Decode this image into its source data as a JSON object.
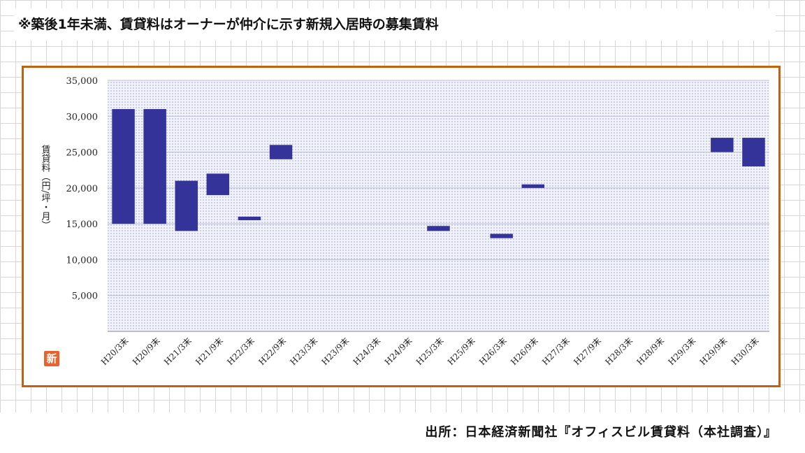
{
  "note": "※築後1年未満、賃貸料はオーナーが仲介に示す新規入居時の募集賃料",
  "source": "出所：日本経済新聞社『オフィスビル賃貸料（本社調査）』",
  "badge": "新",
  "colors": {
    "bar": "#333399",
    "frame": "#c0620f",
    "plot_dots": "#9aa3c8"
  },
  "chart_data": {
    "type": "bar",
    "subtype": "floating-range",
    "ylabel": "賃貸料（円/坪・月）",
    "ylim": [
      0,
      35000
    ],
    "yticks": [
      5000,
      10000,
      15000,
      20000,
      25000,
      30000,
      35000
    ],
    "ytick_labels": [
      "5,000",
      "10,000",
      "15,000",
      "20,000",
      "25,000",
      "30,000",
      "35,000"
    ],
    "categories": [
      "H20/3末",
      "H20/9末",
      "H21/3末",
      "H21/9末",
      "H22/3末",
      "H22/9末",
      "H23/3末",
      "H23/9末",
      "H24/3末",
      "H24/9末",
      "H25/3末",
      "H25/9末",
      "H26/3末",
      "H26/9末",
      "H27/3末",
      "H27/9末",
      "H28/3末",
      "H28/9末",
      "H29/3末",
      "H29/9末",
      "H30/3末"
    ],
    "series": [
      {
        "low": [
          15000,
          15000,
          14000,
          19000,
          15500,
          24000,
          null,
          null,
          null,
          null,
          14000,
          null,
          13000,
          20000,
          null,
          null,
          null,
          null,
          null,
          25000,
          23000
        ],
        "high": [
          31000,
          31000,
          21000,
          22000,
          16000,
          26000,
          null,
          null,
          null,
          null,
          14700,
          null,
          13600,
          20500,
          null,
          null,
          null,
          null,
          null,
          27000,
          27000
        ]
      }
    ],
    "grid": true,
    "legend": "none"
  }
}
